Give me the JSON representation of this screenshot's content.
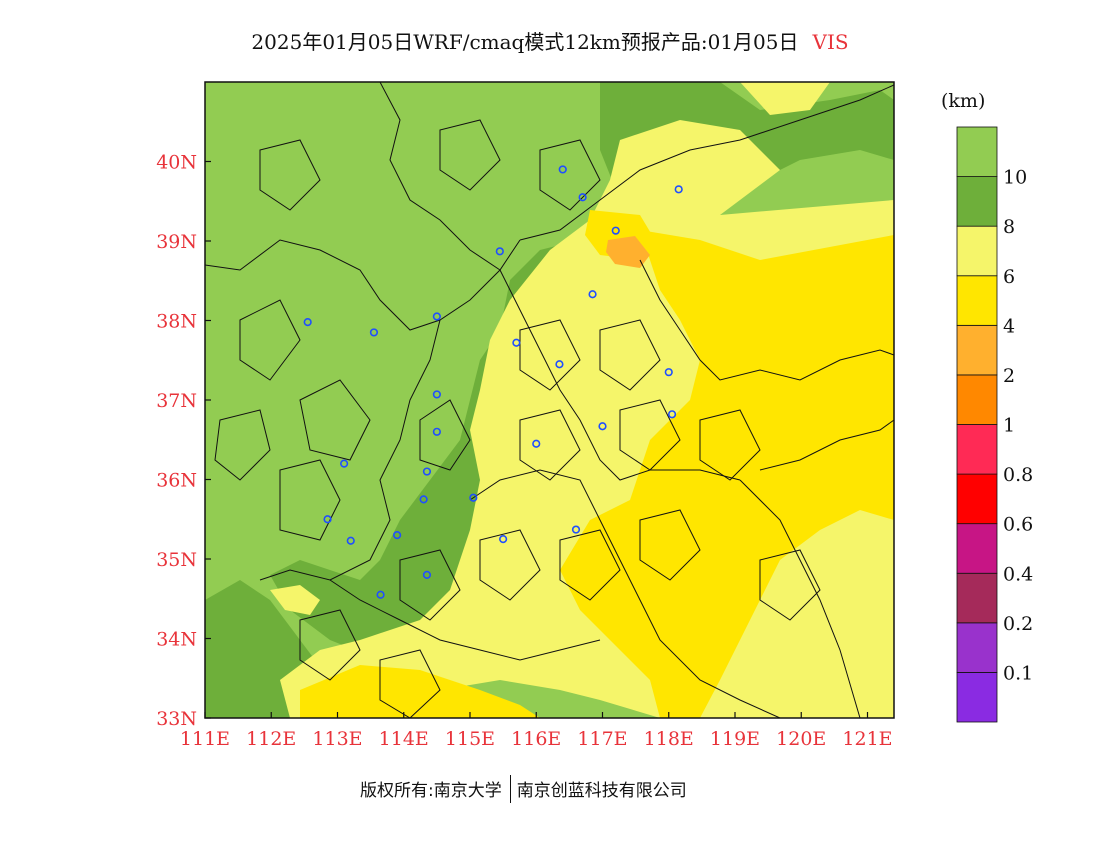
{
  "title": {
    "main": "2025年01月05日WRF/cmaq模式12km预报产品:01月05日",
    "variable": "VIS"
  },
  "map": {
    "lon_range": [
      111,
      121.4
    ],
    "lat_range": [
      33,
      41
    ],
    "x_ticks": [
      {
        "lon": 111,
        "label": "111E"
      },
      {
        "lon": 112,
        "label": "112E"
      },
      {
        "lon": 113,
        "label": "113E"
      },
      {
        "lon": 114,
        "label": "114E"
      },
      {
        "lon": 115,
        "label": "115E"
      },
      {
        "lon": 116,
        "label": "116E"
      },
      {
        "lon": 117,
        "label": "117E"
      },
      {
        "lon": 118,
        "label": "118E"
      },
      {
        "lon": 119,
        "label": "119E"
      },
      {
        "lon": 120,
        "label": "120E"
      },
      {
        "lon": 121,
        "label": "121E"
      }
    ],
    "y_ticks": [
      {
        "lat": 33,
        "label": "33N"
      },
      {
        "lat": 34,
        "label": "34N"
      },
      {
        "lat": 35,
        "label": "35N"
      },
      {
        "lat": 36,
        "label": "36N"
      },
      {
        "lat": 37,
        "label": "37N"
      },
      {
        "lat": 38,
        "label": "38N"
      },
      {
        "lat": 39,
        "label": "39N"
      },
      {
        "lat": 40,
        "label": "40N"
      }
    ],
    "stations": [
      {
        "lon": 116.4,
        "lat": 39.9
      },
      {
        "lon": 116.7,
        "lat": 39.55
      },
      {
        "lon": 118.15,
        "lat": 39.65
      },
      {
        "lon": 117.2,
        "lat": 39.13
      },
      {
        "lon": 115.45,
        "lat": 38.87
      },
      {
        "lon": 116.85,
        "lat": 38.33
      },
      {
        "lon": 112.55,
        "lat": 37.98
      },
      {
        "lon": 113.55,
        "lat": 37.85
      },
      {
        "lon": 114.5,
        "lat": 38.05
      },
      {
        "lon": 115.7,
        "lat": 37.72
      },
      {
        "lon": 116.35,
        "lat": 37.45
      },
      {
        "lon": 118.0,
        "lat": 37.35
      },
      {
        "lon": 114.5,
        "lat": 37.07
      },
      {
        "lon": 118.05,
        "lat": 36.82
      },
      {
        "lon": 117.0,
        "lat": 36.67
      },
      {
        "lon": 114.5,
        "lat": 36.6
      },
      {
        "lon": 116.0,
        "lat": 36.45
      },
      {
        "lon": 113.1,
        "lat": 36.2
      },
      {
        "lon": 114.35,
        "lat": 36.1
      },
      {
        "lon": 114.3,
        "lat": 35.75
      },
      {
        "lon": 115.05,
        "lat": 35.77
      },
      {
        "lon": 112.85,
        "lat": 35.5
      },
      {
        "lon": 113.9,
        "lat": 35.3
      },
      {
        "lon": 113.2,
        "lat": 35.23
      },
      {
        "lon": 116.6,
        "lat": 35.37
      },
      {
        "lon": 115.5,
        "lat": 35.25
      },
      {
        "lon": 114.35,
        "lat": 34.8
      },
      {
        "lon": 113.65,
        "lat": 34.55
      }
    ]
  },
  "legend": {
    "unit": "(km)",
    "colors": [
      "#8a2be2",
      "#9932cc",
      "#a52a5a",
      "#c71585",
      "#ff0000",
      "#ff2a55",
      "#ff8800",
      "#ffb02e",
      "#ffe600",
      "#f5f56a",
      "#6eaf3a",
      "#92cc52"
    ],
    "labels": [
      "0.1",
      "0.2",
      "0.4",
      "0.6",
      "0.8",
      "1",
      "2",
      "4",
      "6",
      "8",
      "10"
    ]
  },
  "footer": {
    "left": "版权所有:南京大学",
    "right": "南京创蓝科技有限公司"
  }
}
